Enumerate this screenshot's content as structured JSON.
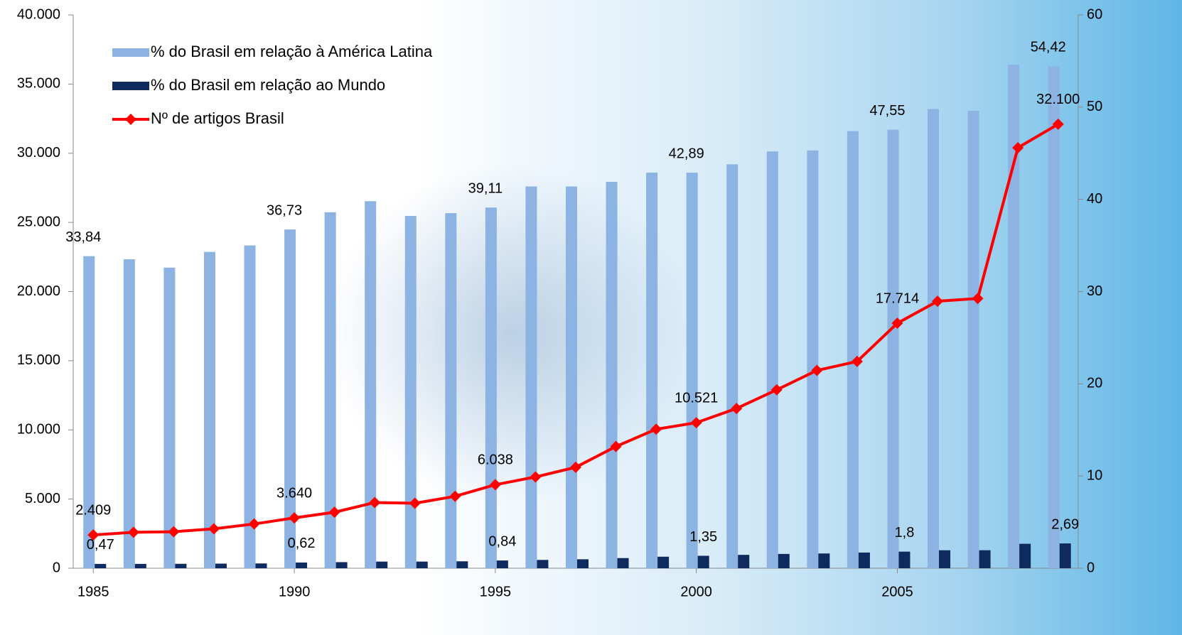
{
  "chart_data": {
    "type": "bar-line",
    "categories": [
      "1985",
      null,
      null,
      null,
      null,
      "1990",
      null,
      null,
      null,
      null,
      "1995",
      null,
      null,
      null,
      null,
      "2000",
      null,
      null,
      null,
      null,
      "2005",
      null,
      null,
      null,
      null
    ],
    "series": [
      {
        "name": "% do Brasil em relação à América Latina",
        "type": "bar",
        "axis": "y2",
        "color": "#8db3e2",
        "values": [
          33.84,
          33.5,
          32.6,
          34.3,
          35.0,
          36.73,
          38.6,
          39.8,
          38.2,
          38.5,
          39.11,
          41.4,
          41.4,
          41.9,
          42.9,
          42.89,
          43.8,
          45.2,
          45.3,
          47.4,
          47.55,
          49.8,
          49.6,
          54.6,
          54.42
        ],
        "value_labels": [
          "33,84",
          null,
          null,
          null,
          null,
          "36,73",
          null,
          null,
          null,
          null,
          "39,11",
          null,
          null,
          null,
          null,
          "42,89",
          null,
          null,
          null,
          null,
          "47,55",
          null,
          null,
          null,
          "54,42"
        ]
      },
      {
        "name": "% do Brasil em relação ao Mundo",
        "type": "bar",
        "axis": "y2",
        "color": "#0f2a5e",
        "values": [
          0.47,
          0.47,
          0.48,
          0.5,
          0.52,
          0.62,
          0.66,
          0.72,
          0.72,
          0.75,
          0.84,
          0.9,
          0.97,
          1.1,
          1.25,
          1.35,
          1.45,
          1.55,
          1.6,
          1.7,
          1.8,
          1.95,
          1.95,
          2.65,
          2.69
        ],
        "value_labels": [
          "0,47",
          null,
          null,
          null,
          null,
          "0,62",
          null,
          null,
          null,
          null,
          "0,84",
          null,
          null,
          null,
          null,
          "1,35",
          null,
          null,
          null,
          null,
          "1,8",
          null,
          null,
          null,
          "2,69"
        ]
      },
      {
        "name": "Nº de artigos Brasil",
        "type": "line",
        "axis": "y",
        "color": "#ff0000",
        "values": [
          2409,
          2600,
          2640,
          2850,
          3200,
          3640,
          4050,
          4750,
          4700,
          5200,
          6038,
          6600,
          7300,
          8800,
          10050,
          10521,
          11550,
          12900,
          14300,
          14950,
          17714,
          19300,
          19500,
          30400,
          32100
        ],
        "value_labels": [
          "2.409",
          null,
          null,
          null,
          null,
          "3.640",
          null,
          null,
          null,
          null,
          "6.038",
          null,
          null,
          null,
          null,
          "10.521",
          null,
          null,
          null,
          null,
          "17.714",
          null,
          null,
          null,
          "32.100"
        ]
      }
    ],
    "ylim": [
      0,
      40000
    ],
    "yticks": [
      0,
      {
        "value": 5000,
        "label": "5.000"
      },
      {
        "value": 10000,
        "label": "10.000"
      },
      {
        "value": 15000,
        "label": "15.000"
      },
      {
        "value": 20000,
        "label": "20.000"
      },
      {
        "value": 25000,
        "label": "25.000"
      },
      {
        "value": 30000,
        "label": "30.000"
      },
      {
        "value": 35000,
        "label": "35.000"
      },
      {
        "value": 40000,
        "label": "40.000"
      }
    ],
    "y2lim": [
      0,
      60
    ],
    "y2ticks": [
      0,
      10,
      20,
      30,
      40,
      50,
      60
    ],
    "legend": "top-left"
  }
}
